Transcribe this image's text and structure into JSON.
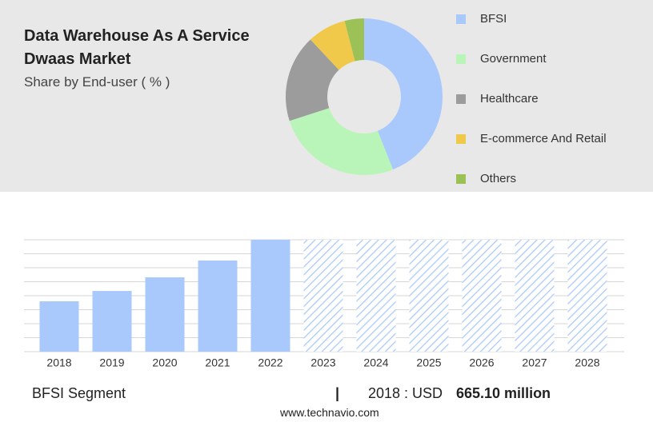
{
  "header": {
    "title": "Data Warehouse As A Service Dwaas Market",
    "subtitle": "Share by End-user ( % )"
  },
  "chart_data": [
    {
      "type": "donut",
      "categories": [
        "BFSI",
        "Government",
        "Healthcare",
        "E-commerce And Retail",
        "Others"
      ],
      "values": [
        44,
        26,
        18,
        8,
        4
      ],
      "colors": [
        "#a9c8fb",
        "#b9f5b8",
        "#9c9c9c",
        "#f0c94a",
        "#9cc157"
      ]
    },
    {
      "type": "bar",
      "categories": [
        "2018",
        "2019",
        "2020",
        "2021",
        "2022",
        "2023",
        "2024",
        "2025",
        "2026",
        "2027",
        "2028"
      ],
      "values": [
        665.1,
        802,
        982,
        1204,
        1478,
        null,
        null,
        null,
        null,
        null,
        null
      ],
      "color": "#a9c8fb",
      "ylim": [
        0,
        1478
      ]
    }
  ],
  "footer": {
    "segment": "BFSI Segment",
    "period": "2018 : USD",
    "value": "665.10 million",
    "source": "www.technavio.com"
  }
}
